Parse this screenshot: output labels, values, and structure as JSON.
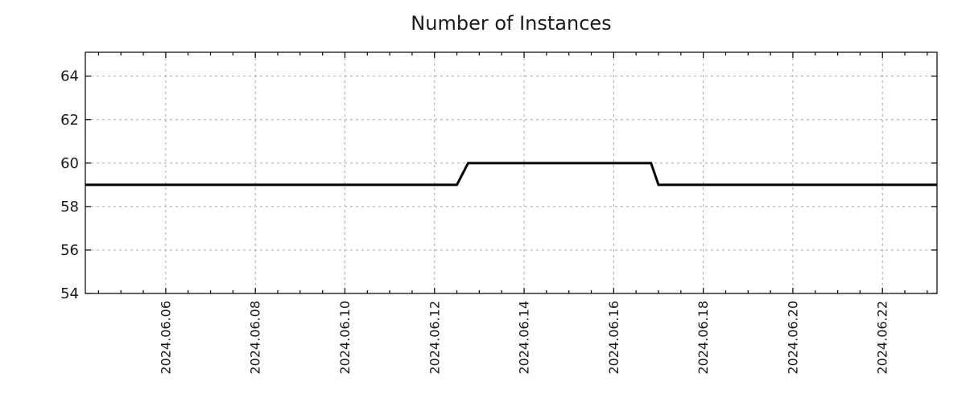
{
  "chart_data": {
    "type": "line",
    "title": "Number of Instances",
    "grid": {
      "show": true,
      "style": "dashed",
      "color": "#a8a8a8"
    },
    "legend": {
      "show": false
    },
    "colors": {
      "series": "#000000",
      "axis": "#000000",
      "text": "#1a1a1a"
    },
    "x_axis": {
      "unit": "days since 2024-06-01 00:00",
      "min": 3.205,
      "max": 22.218,
      "minor_tick_interval": 0.5,
      "label_rotation_deg": -90,
      "major_ticks": [
        {
          "pos": 5,
          "label": "2024.06.06"
        },
        {
          "pos": 7,
          "label": "2024.06.08"
        },
        {
          "pos": 9,
          "label": "2024.06.10"
        },
        {
          "pos": 11,
          "label": "2024.06.12"
        },
        {
          "pos": 13,
          "label": "2024.06.14"
        },
        {
          "pos": 15,
          "label": "2024.06.16"
        },
        {
          "pos": 17,
          "label": "2024.06.18"
        },
        {
          "pos": 19,
          "label": "2024.06.20"
        },
        {
          "pos": 21,
          "label": "2024.06.22"
        }
      ]
    },
    "y_axis": {
      "min": 54,
      "max": 65.1,
      "ticks": [
        {
          "value": 54,
          "label": "54",
          "grid": false
        },
        {
          "value": 56,
          "label": "56",
          "grid": true
        },
        {
          "value": 58,
          "label": "58",
          "grid": true
        },
        {
          "value": 60,
          "label": "60",
          "grid": true
        },
        {
          "value": 62,
          "label": "62",
          "grid": true
        },
        {
          "value": 64,
          "label": "64",
          "grid": true
        }
      ]
    },
    "series": [
      {
        "name": "instances",
        "color": "#000000",
        "stroke_width": 3,
        "points": [
          {
            "t": "2024-06-04 05:00",
            "x": 3.205,
            "y": 59
          },
          {
            "t": "2024-06-12 12:00",
            "x": 11.5,
            "y": 59
          },
          {
            "t": "2024-06-12 18:00",
            "x": 11.75,
            "y": 60
          },
          {
            "t": "2024-06-16 20:00",
            "x": 15.833,
            "y": 60
          },
          {
            "t": "2024-06-17 00:00",
            "x": 16.0,
            "y": 59
          },
          {
            "t": "2024-06-23 05:00",
            "x": 22.218,
            "y": 59
          }
        ]
      }
    ]
  }
}
